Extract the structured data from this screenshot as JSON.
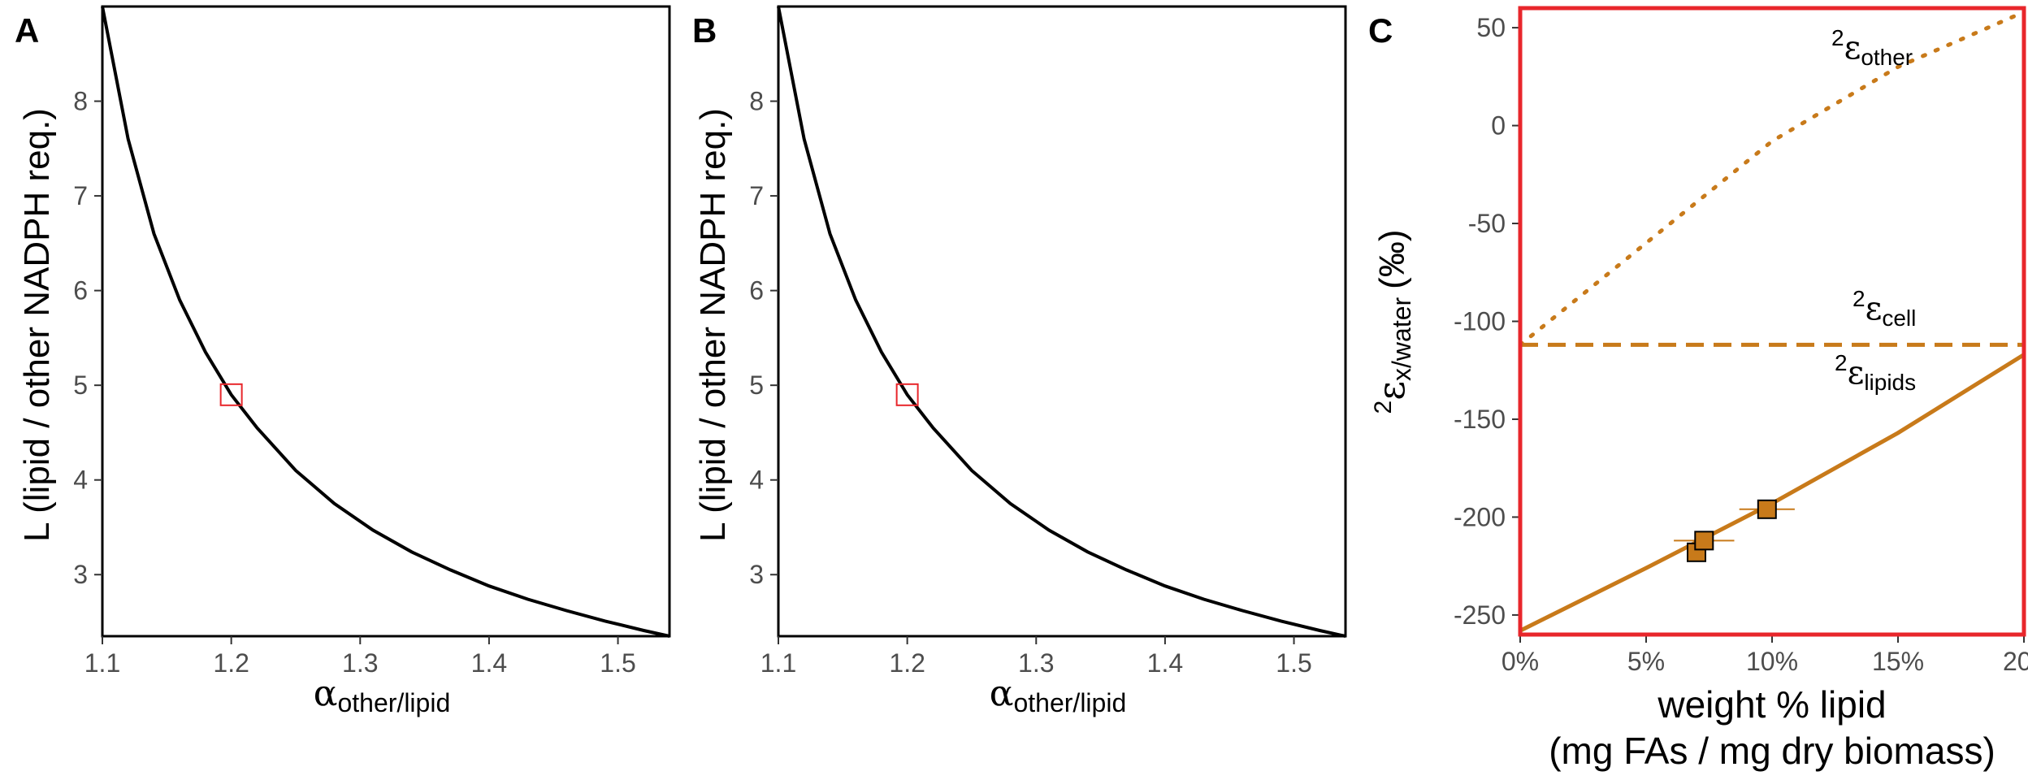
{
  "figure": {
    "panels": [
      "A",
      "B",
      "C"
    ]
  },
  "chart_data": [
    {
      "panel": "A",
      "type": "line",
      "xlabel_main": "α",
      "xlabel_sub": "other/lipid",
      "ylabel": "L (lipid / other NADPH req.)",
      "xlim": [
        1.1,
        1.54
      ],
      "ylim": [
        2.35,
        9.0
      ],
      "xticks": [
        1.1,
        1.2,
        1.3,
        1.4,
        1.5
      ],
      "xtick_labels": [
        "1.1",
        "1.2",
        "1.3",
        "1.4",
        "1.5"
      ],
      "yticks": [
        3,
        4,
        5,
        6,
        7,
        8
      ],
      "ytick_labels": [
        "3",
        "4",
        "5",
        "6",
        "7",
        "8"
      ],
      "grid": false,
      "series": [
        {
          "color": "#000000",
          "x": [
            1.1,
            1.12,
            1.14,
            1.16,
            1.18,
            1.2,
            1.22,
            1.25,
            1.28,
            1.31,
            1.34,
            1.37,
            1.4,
            1.43,
            1.46,
            1.49,
            1.52,
            1.54
          ],
          "y": [
            9.0,
            7.6,
            6.6,
            5.9,
            5.35,
            4.9,
            4.55,
            4.1,
            3.75,
            3.47,
            3.24,
            3.05,
            2.88,
            2.74,
            2.62,
            2.51,
            2.41,
            2.35
          ]
        }
      ],
      "marker": {
        "x": 1.2,
        "y": 4.9,
        "color": "#e8262b"
      }
    },
    {
      "panel": "B",
      "type": "line",
      "xlabel_main": "α",
      "xlabel_sub": "other/lipid",
      "ylabel": "L (lipid / other NADPH req.)",
      "xlim": [
        1.1,
        1.54
      ],
      "ylim": [
        2.35,
        9.0
      ],
      "xticks": [
        1.1,
        1.2,
        1.3,
        1.4,
        1.5
      ],
      "xtick_labels": [
        "1.1",
        "1.2",
        "1.3",
        "1.4",
        "1.5"
      ],
      "yticks": [
        3,
        4,
        5,
        6,
        7,
        8
      ],
      "ytick_labels": [
        "3",
        "4",
        "5",
        "6",
        "7",
        "8"
      ],
      "grid": false,
      "series": [
        {
          "color": "#000000",
          "x": [
            1.1,
            1.12,
            1.14,
            1.16,
            1.18,
            1.2,
            1.22,
            1.25,
            1.28,
            1.31,
            1.34,
            1.37,
            1.4,
            1.43,
            1.46,
            1.49,
            1.52,
            1.54
          ],
          "y": [
            9.0,
            7.6,
            6.6,
            5.9,
            5.35,
            4.9,
            4.55,
            4.1,
            3.75,
            3.47,
            3.24,
            3.05,
            2.88,
            2.74,
            2.62,
            2.51,
            2.41,
            2.35
          ]
        }
      ],
      "marker": {
        "x": 1.2,
        "y": 4.9,
        "color": "#e8262b"
      }
    },
    {
      "panel": "C",
      "type": "line",
      "xlabel": "weight % lipid",
      "xlabel2": "(mg FAs / mg dry biomass)",
      "ylabel_sup": "2",
      "ylabel_main": "ε",
      "ylabel_sub": "x/water",
      "ylabel_unit": "(‰)",
      "xlim": [
        0,
        0.2
      ],
      "ylim": [
        -260,
        60
      ],
      "xticks": [
        0,
        0.05,
        0.1,
        0.15,
        0.2
      ],
      "xtick_labels": [
        "0%",
        "5%",
        "10%",
        "15%",
        "20"
      ],
      "yticks": [
        -250,
        -200,
        -150,
        -100,
        -50,
        0,
        50
      ],
      "ytick_labels": [
        "-250",
        "-200",
        "-150",
        "-100",
        "-50",
        "0",
        "50"
      ],
      "grid": false,
      "border_color": "#e8262b",
      "series": [
        {
          "name_sup": "2",
          "name_main": "ε",
          "name_sub": "other",
          "style": "dotted",
          "color": "#c87a1a",
          "x": [
            0,
            0.05,
            0.1,
            0.15,
            0.2
          ],
          "y": [
            -112,
            -60,
            -8,
            30,
            58
          ]
        },
        {
          "name_sup": "2",
          "name_main": "ε",
          "name_sub": "cell",
          "style": "dashed",
          "color": "#c87a1a",
          "x": [
            0,
            0.2
          ],
          "y": [
            -112,
            -112
          ]
        },
        {
          "name_sup": "2",
          "name_main": "ε",
          "name_sub": "lipids",
          "style": "solid",
          "color": "#c87a1a",
          "x": [
            0,
            0.05,
            0.1,
            0.15,
            0.2
          ],
          "y": [
            -258,
            -226,
            -193,
            -157,
            -117
          ]
        }
      ],
      "points": [
        {
          "x": 0.07,
          "y": -218,
          "xerr": 0.003,
          "color": "#c87a1a"
        },
        {
          "x": 0.073,
          "y": -212,
          "xerr": 0.012,
          "color": "#c87a1a"
        },
        {
          "x": 0.098,
          "y": -196,
          "xerr": 0.011,
          "color": "#c87a1a"
        }
      ]
    }
  ]
}
